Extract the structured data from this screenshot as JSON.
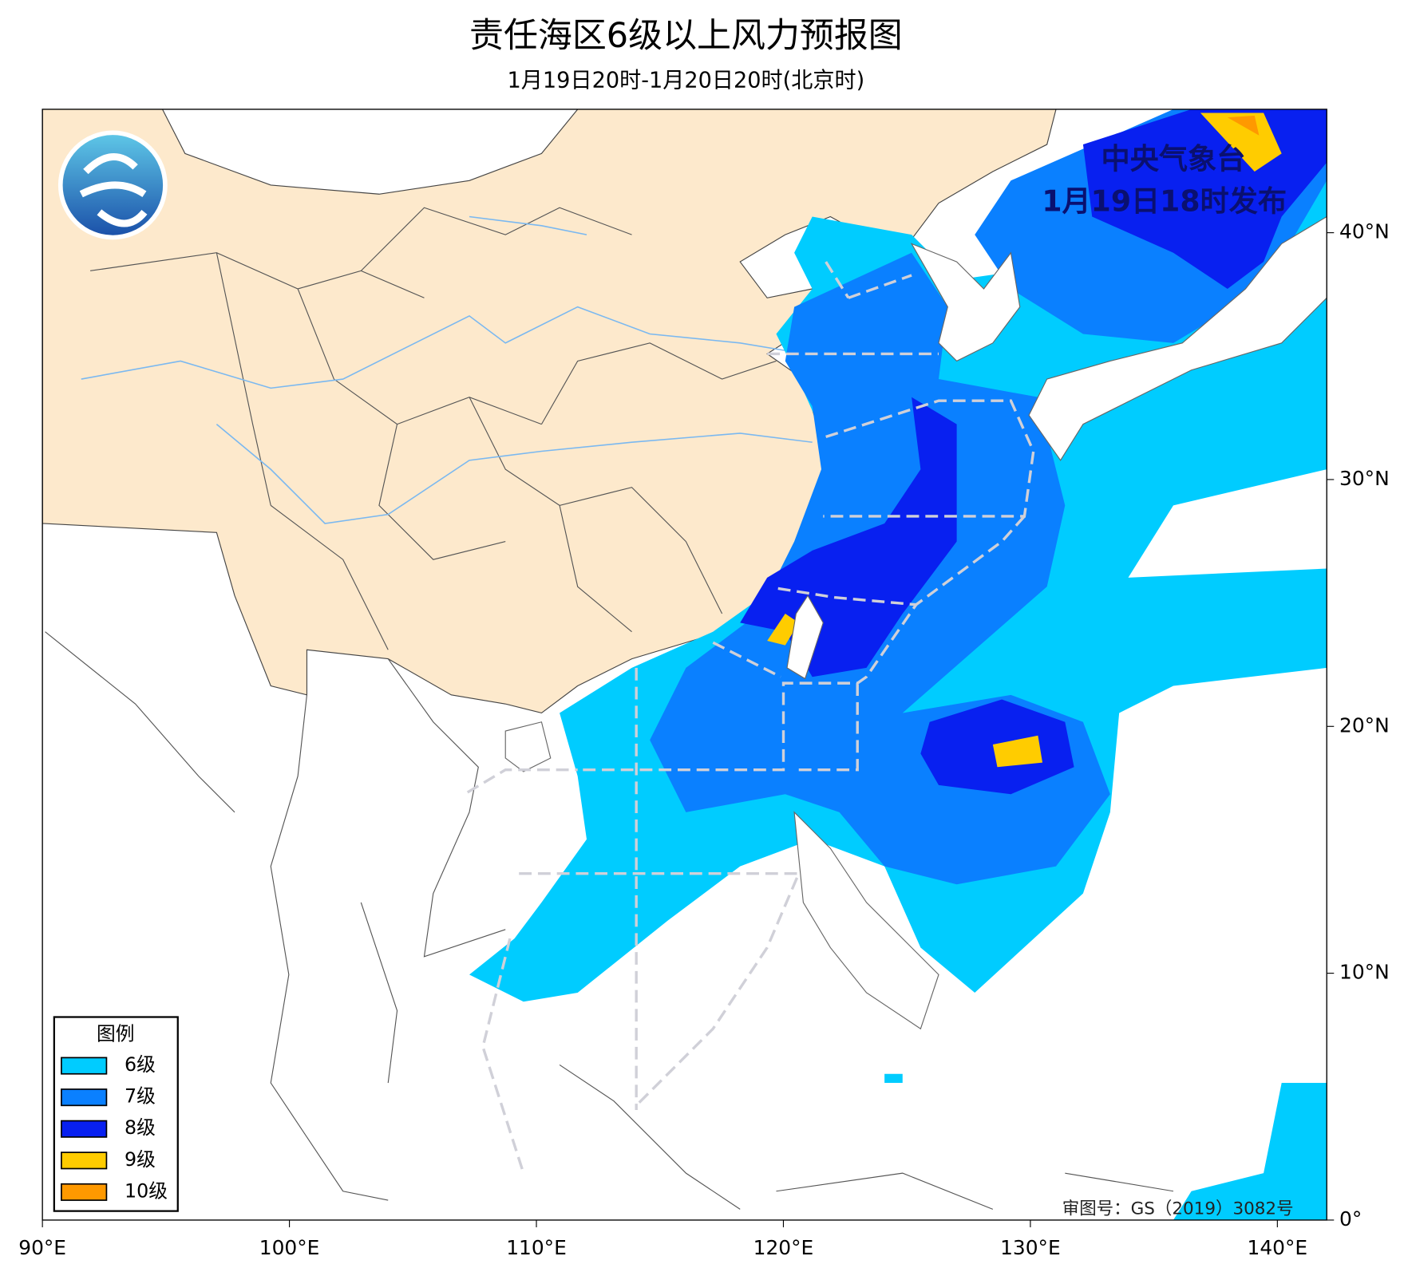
{
  "header": {
    "title": "责任海区6级以上风力预报图",
    "subtitle": "1月19日20时-1月20日20时(北京时)"
  },
  "issuer": {
    "name": "中央气象台",
    "issued": "1月19日18时发布"
  },
  "approval": "审图号：GS（2019）3082号",
  "legend": {
    "title": "图例",
    "items": [
      {
        "label": "6级",
        "color": "#00ccff"
      },
      {
        "label": "7级",
        "color": "#0a80ff"
      },
      {
        "label": "8级",
        "color": "#0820f0"
      },
      {
        "label": "9级",
        "color": "#ffcc00"
      },
      {
        "label": "10级",
        "color": "#ff9900"
      }
    ]
  },
  "map": {
    "xlim": [
      90,
      142
    ],
    "ylim": [
      0,
      45
    ],
    "xticks": [
      {
        "value": 90,
        "label": "90°E"
      },
      {
        "value": 100,
        "label": "100°E"
      },
      {
        "value": 110,
        "label": "110°E"
      },
      {
        "value": 120,
        "label": "120°E"
      },
      {
        "value": 130,
        "label": "130°E"
      },
      {
        "value": 140,
        "label": "140°E"
      }
    ],
    "yticks": [
      {
        "value": 0,
        "label": "0°"
      },
      {
        "value": 10,
        "label": "10°N"
      },
      {
        "value": 20,
        "label": "20°N"
      },
      {
        "value": 30,
        "label": "30°N"
      },
      {
        "value": 40,
        "label": "40°N"
      }
    ]
  }
}
